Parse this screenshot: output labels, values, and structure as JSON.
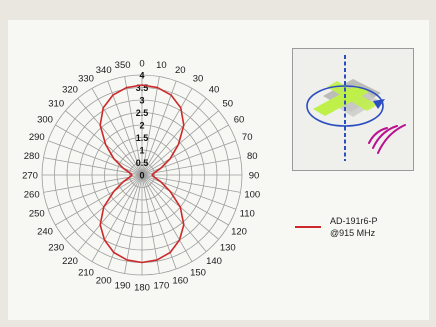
{
  "colors": {
    "background": "#e9e7df",
    "panel": "#f7f7f4",
    "grid": "#9d9d9d",
    "series": "#cc2a2a",
    "inset_axis": "#2b4fc0",
    "inset_board": "#bff04a",
    "inset_waves": "#b8108e"
  },
  "legend": {
    "line1": "AD-191r6-P",
    "line2": "@915 MHz"
  },
  "inset": {
    "icon": "antenna-orientation-diagram"
  },
  "chart_data": {
    "type": "polar-line",
    "title": "",
    "angle_unit": "deg",
    "angle_direction": "clockwise",
    "zero_at": "top",
    "angular_ticks": [
      0,
      10,
      20,
      30,
      40,
      50,
      60,
      70,
      80,
      90,
      100,
      110,
      120,
      130,
      140,
      150,
      160,
      170,
      180,
      190,
      200,
      210,
      220,
      230,
      240,
      250,
      260,
      270,
      280,
      290,
      300,
      310,
      320,
      330,
      340,
      350
    ],
    "radial_ticks": [
      "0",
      "0.5",
      "1",
      "1.5",
      "2",
      "2.5",
      "3",
      "3.5",
      "4"
    ],
    "r_range": [
      0,
      4
    ],
    "grid": true,
    "legend_position": "right",
    "series": [
      {
        "name": "AD-191r6-P\n@915 MHz",
        "angles": [
          0,
          10,
          20,
          30,
          40,
          50,
          60,
          70,
          80,
          90,
          100,
          110,
          120,
          130,
          140,
          150,
          160,
          170,
          180,
          190,
          200,
          210,
          220,
          230,
          240,
          250,
          260,
          270,
          280,
          290,
          300,
          310,
          320,
          330,
          340,
          350
        ],
        "values": [
          3.6,
          3.55,
          3.4,
          3.1,
          2.6,
          1.9,
          1.3,
          0.8,
          0.5,
          0.4,
          0.5,
          0.8,
          1.3,
          2.0,
          2.6,
          3.0,
          3.3,
          3.45,
          3.5,
          3.45,
          3.3,
          3.0,
          2.6,
          2.0,
          1.3,
          0.8,
          0.5,
          0.4,
          0.5,
          0.8,
          1.3,
          1.9,
          2.6,
          3.1,
          3.4,
          3.55
        ]
      }
    ]
  }
}
